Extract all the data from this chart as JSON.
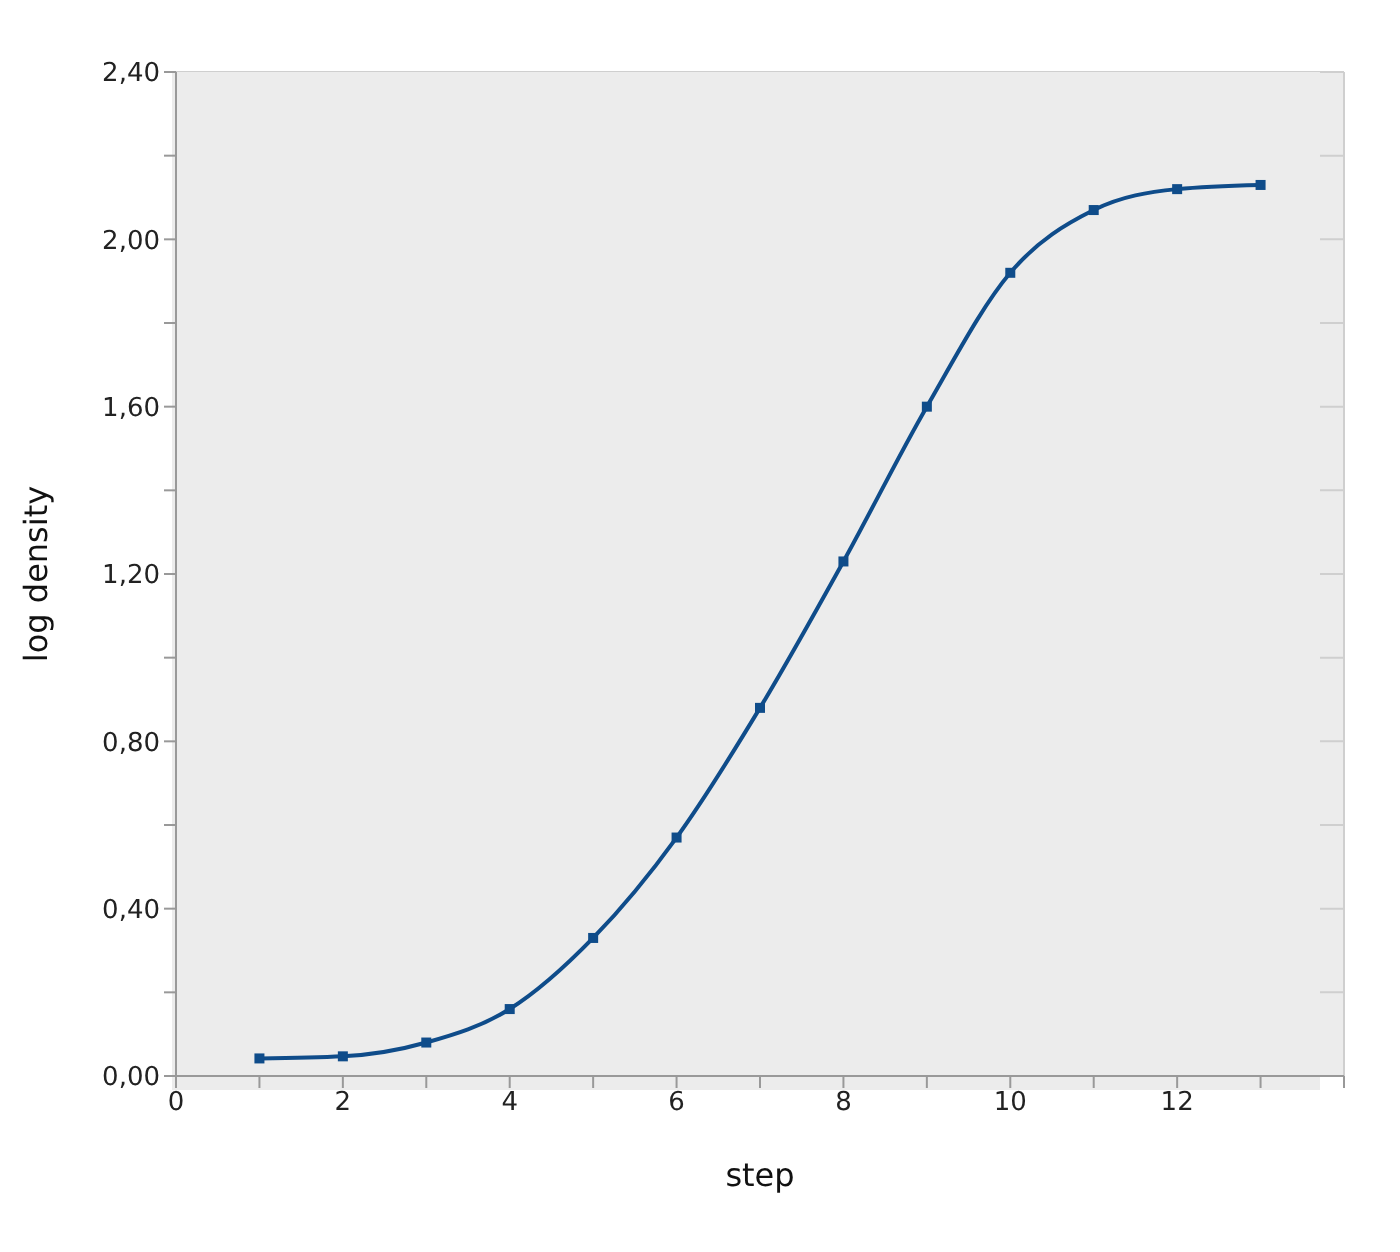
{
  "chart_data": {
    "type": "line",
    "xlabel": "step",
    "ylabel": "log density",
    "x": [
      1,
      2,
      3,
      4,
      5,
      6,
      7,
      8,
      9,
      10,
      11,
      12,
      13
    ],
    "series": [
      {
        "color": "#0f4c8a",
        "values": [
          0.042,
          0.047,
          0.08,
          0.16,
          0.33,
          0.57,
          0.88,
          1.23,
          1.6,
          1.92,
          2.07,
          2.12,
          2.13
        ]
      }
    ],
    "xlim": [
      0,
      14
    ],
    "xticks": [
      0,
      {
        "value": 1,
        "label": null
      },
      2,
      {
        "value": 3,
        "label": null
      },
      4,
      {
        "value": 5,
        "label": null
      },
      6,
      {
        "value": 7,
        "label": null
      },
      8,
      {
        "value": 9,
        "label": null
      },
      10,
      {
        "value": 11,
        "label": null
      },
      12,
      {
        "value": 13,
        "label": null
      },
      {
        "value": 14,
        "label": null
      }
    ],
    "ylim": [
      0,
      2.4
    ],
    "yticks": [
      {
        "value": 0,
        "label": "0,00"
      },
      {
        "value": 0.2,
        "label": null
      },
      {
        "value": 0.4,
        "label": "0,40"
      },
      {
        "value": 0.6,
        "label": null
      },
      {
        "value": 0.8,
        "label": "0,80"
      },
      {
        "value": 1,
        "label": null
      },
      {
        "value": 1.2,
        "label": "1,20"
      },
      {
        "value": 1.4,
        "label": null
      },
      {
        "value": 1.6,
        "label": "1,60"
      },
      {
        "value": 1.8,
        "label": null
      },
      {
        "value": 2,
        "label": "2,00"
      },
      {
        "value": 2.2,
        "label": null
      },
      {
        "value": 2.4,
        "label": "2,40"
      }
    ],
    "grid": true,
    "marker": "square",
    "line_style": "solid",
    "legend": false
  }
}
